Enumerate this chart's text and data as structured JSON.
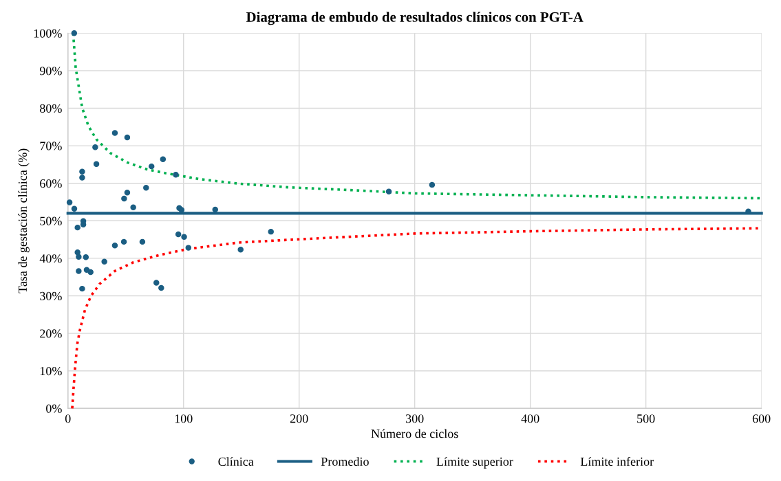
{
  "chart_data": {
    "type": "scatter",
    "title": "Diagrama de embudo de resultados clínicos con PGT-A",
    "xlabel": "Número de ciclos",
    "ylabel": "Tasa de gestación clínica (%)",
    "xlim": [
      0,
      600
    ],
    "xticks": [
      0,
      100,
      200,
      300,
      400,
      500,
      600
    ],
    "ylim": [
      0,
      100
    ],
    "yticks": [
      {
        "value": 0,
        "label": "0%"
      },
      {
        "value": 10,
        "label": "10%"
      },
      {
        "value": 20,
        "label": "20%"
      },
      {
        "value": 30,
        "label": "30%"
      },
      {
        "value": 40,
        "label": "40%"
      },
      {
        "value": 50,
        "label": "50%"
      },
      {
        "value": 60,
        "label": "60%"
      },
      {
        "value": 70,
        "label": "70%"
      },
      {
        "value": 80,
        "label": "80%"
      },
      {
        "value": 90,
        "label": "90%"
      },
      {
        "value": 100,
        "label": "100%"
      }
    ],
    "grid": true,
    "legend": "bottom",
    "series": [
      {
        "name": "Clínica",
        "marker": "circle",
        "color": "#1b5e83",
        "x": [
          1.4,
          5.5,
          5.4,
          8.3,
          8.3,
          9.3,
          9.3,
          12.3,
          12.3,
          12.3,
          13.3,
          13.3,
          15.5,
          16.2,
          19.6,
          23.6,
          24.6,
          31.5,
          48.6,
          51.3,
          51.3,
          40.6,
          48.4,
          40.6,
          56.5,
          67.6,
          64.4,
          82.2,
          72.3,
          76.5,
          80.7,
          93.3,
          96.3,
          98.3,
          95.5,
          100.5,
          104.2,
          127.4,
          149.4,
          175.6,
          277.6,
          315,
          588.6
        ],
        "values": [
          54.9,
          53.2,
          100,
          48.2,
          41.6,
          40.4,
          36.6,
          31.9,
          63.1,
          61.5,
          49.9,
          49.0,
          40.3,
          36.9,
          36.3,
          69.6,
          65.1,
          39.1,
          55.9,
          57.5,
          72.2,
          73.4,
          44.4,
          43.4,
          53.6,
          58.8,
          44.4,
          66.4,
          64.5,
          33.5,
          32.1,
          62.3,
          53.4,
          52.9,
          46.4,
          45.7,
          42.8,
          53.0,
          42.3,
          47.1,
          57.8,
          59.6,
          52.5
        ]
      },
      {
        "name": "Promedio",
        "type": "line",
        "line_style": "solid",
        "color": "#1b5e83",
        "x": [
          0,
          600
        ],
        "values": [
          52,
          52
        ]
      },
      {
        "name": "Límite superior",
        "type": "line",
        "line_style": "dotted",
        "color": "#00b050",
        "x": [
          4.5,
          6.7,
          12.3,
          17.8,
          24.6,
          36.9,
          51.7,
          68.4,
          84.4,
          113.7,
          147.8,
          191.4,
          250,
          300,
          400,
          500,
          600
        ],
        "values": [
          100,
          90.8,
          80.1,
          75.2,
          71.7,
          68.0,
          65.5,
          63.7,
          62.7,
          61.1,
          59.9,
          58.9,
          58.1,
          57.3,
          56.8,
          56.3,
          56.0
        ]
      },
      {
        "name": "Límite inferior",
        "type": "line",
        "line_style": "dotted",
        "color": "#ff0000",
        "x": [
          3.7,
          4.8,
          6.1,
          8.1,
          10.5,
          14.7,
          19.8,
          27.5,
          40.6,
          56.3,
          80.9,
          104.2,
          147.8,
          195.4,
          300,
          400,
          500,
          600
        ],
        "values": [
          0,
          5.1,
          10.5,
          17.2,
          21.1,
          26.2,
          29.9,
          33.2,
          36.6,
          38.9,
          41.0,
          42.5,
          44.2,
          45.0,
          46.6,
          47.2,
          47.7,
          48.0
        ]
      }
    ]
  }
}
